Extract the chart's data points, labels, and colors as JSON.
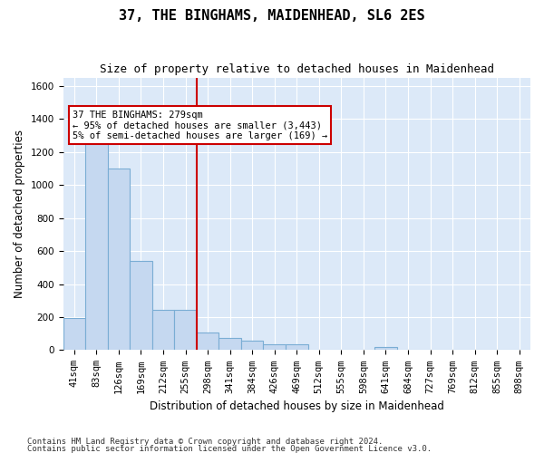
{
  "title": "37, THE BINGHAMS, MAIDENHEAD, SL6 2ES",
  "subtitle": "Size of property relative to detached houses in Maidenhead",
  "xlabel": "Distribution of detached houses by size in Maidenhead",
  "ylabel": "Number of detached properties",
  "categories": [
    "41sqm",
    "83sqm",
    "126sqm",
    "169sqm",
    "212sqm",
    "255sqm",
    "298sqm",
    "341sqm",
    "384sqm",
    "426sqm",
    "469sqm",
    "512sqm",
    "555sqm",
    "598sqm",
    "641sqm",
    "684sqm",
    "727sqm",
    "769sqm",
    "812sqm",
    "855sqm",
    "898sqm"
  ],
  "values": [
    195,
    1270,
    1100,
    540,
    245,
    245,
    105,
    75,
    60,
    35,
    35,
    5,
    0,
    0,
    20,
    0,
    0,
    0,
    0,
    0,
    0
  ],
  "bar_color": "#c5d8f0",
  "bar_edge_color": "#7aadd4",
  "bar_linewidth": 0.8,
  "property_line_color": "#cc0000",
  "annotation_text_lines": [
    "37 THE BINGHAMS: 279sqm",
    "← 95% of detached houses are smaller (3,443)",
    "5% of semi-detached houses are larger (169) →"
  ],
  "annotation_box_color": "#ffffff",
  "annotation_box_edge": "#cc0000",
  "ylim": [
    0,
    1650
  ],
  "yticks": [
    0,
    200,
    400,
    600,
    800,
    1000,
    1200,
    1400,
    1600
  ],
  "background_color": "#dce9f8",
  "footer1": "Contains HM Land Registry data © Crown copyright and database right 2024.",
  "footer2": "Contains public sector information licensed under the Open Government Licence v3.0.",
  "title_fontsize": 11,
  "subtitle_fontsize": 9,
  "axis_fontsize": 8.5,
  "tick_fontsize": 7.5
}
